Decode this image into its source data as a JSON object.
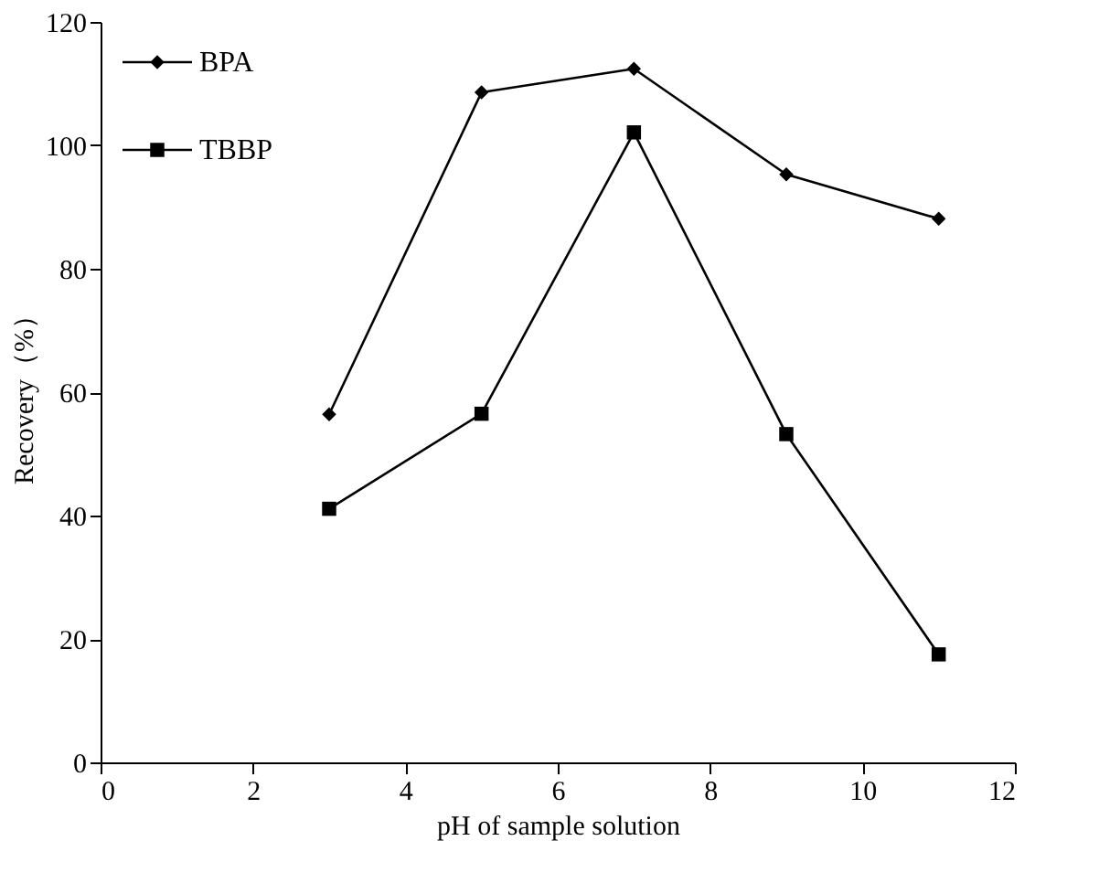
{
  "chart_data": {
    "type": "line",
    "xlabel": "pH of sample solution",
    "ylabel": "Recovery（%）",
    "x": [
      3,
      5,
      7,
      9,
      11
    ],
    "series": [
      {
        "name": "BPA",
        "color": "#000000",
        "marker": "diamond",
        "values": [
          56.4,
          108.6,
          112.4,
          95.3,
          88.1
        ]
      },
      {
        "name": "TBBP",
        "color": "#000000",
        "marker": "square",
        "values": [
          41.1,
          56.5,
          102.1,
          53.2,
          17.5
        ]
      }
    ],
    "xlim": [
      0,
      12
    ],
    "xticks": [
      0,
      2,
      4,
      6,
      8,
      10,
      12
    ],
    "ylim": [
      0,
      120
    ],
    "yticks": [
      0,
      20,
      40,
      60,
      80,
      100,
      120
    ],
    "grid": false,
    "legend": "top left",
    "line_style": "solid"
  }
}
